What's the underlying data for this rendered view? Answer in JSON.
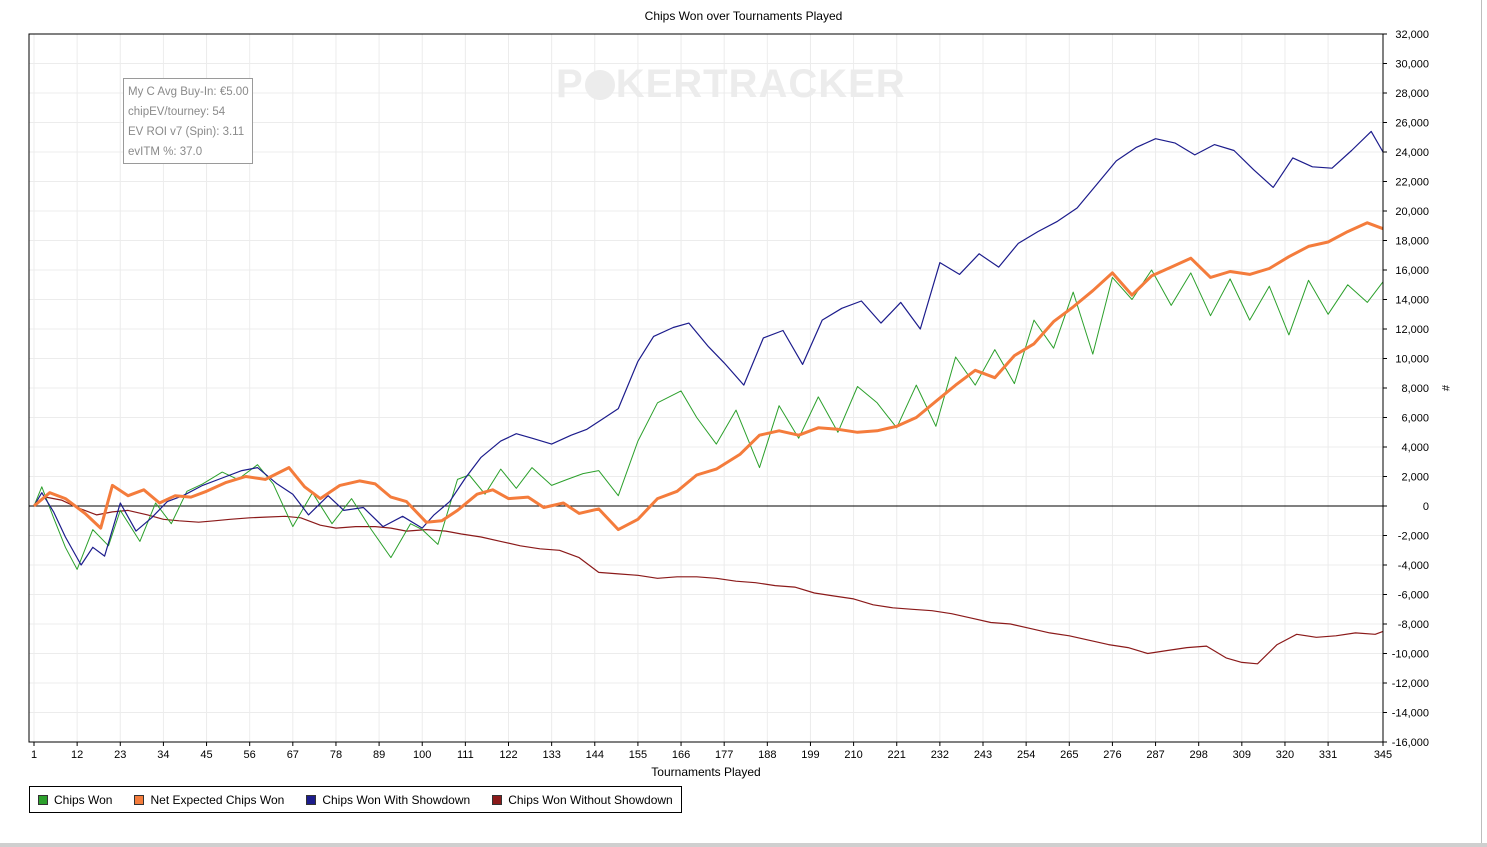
{
  "chart_data": {
    "type": "line",
    "title": "Chips Won over Tournaments Played",
    "xlabel": "Tournaments Played",
    "ylabel": "#",
    "x_ticks": [
      1,
      12,
      23,
      34,
      45,
      56,
      67,
      78,
      89,
      100,
      111,
      122,
      133,
      144,
      155,
      166,
      177,
      188,
      199,
      210,
      221,
      232,
      243,
      254,
      265,
      276,
      287,
      298,
      309,
      320,
      331,
      345
    ],
    "xlim": [
      1,
      345
    ],
    "ylim": [
      -16000,
      32000
    ],
    "y_ticks": [
      -16000,
      -14000,
      -12000,
      -10000,
      -8000,
      -6000,
      -4000,
      -2000,
      0,
      2000,
      4000,
      6000,
      8000,
      10000,
      12000,
      14000,
      16000,
      18000,
      20000,
      22000,
      24000,
      26000,
      28000,
      30000,
      32000
    ],
    "y_tick_labels": [
      "-16,000",
      "-14,000",
      "-12,000",
      "-10,000",
      "-8,000",
      "-6,000",
      "-4,000",
      "-2,000",
      "0",
      "2,000",
      "4,000",
      "6,000",
      "8,000",
      "10,000",
      "12,000",
      "14,000",
      "16,000",
      "18,000",
      "20,000",
      "22,000",
      "24,000",
      "26,000",
      "28,000",
      "30,000",
      "32,000"
    ],
    "grid": true,
    "legend_position": "bottom-left",
    "y_axis_side": "right",
    "series": [
      {
        "name": "Chips Won",
        "color": "#2ca02c",
        "x": [
          1,
          3,
          6,
          9,
          12,
          16,
          20,
          23,
          28,
          32,
          36,
          40,
          44,
          49,
          53,
          58,
          62,
          67,
          72,
          77,
          82,
          87,
          92,
          97,
          100,
          104,
          109,
          112,
          116,
          120,
          124,
          128,
          133,
          137,
          141,
          145,
          150,
          155,
          160,
          166,
          170,
          175,
          180,
          186,
          191,
          196,
          201,
          206,
          211,
          216,
          221,
          226,
          231,
          236,
          241,
          246,
          251,
          256,
          261,
          266,
          271,
          276,
          281,
          286,
          291,
          296,
          301,
          306,
          311,
          316,
          321,
          326,
          331,
          336,
          341,
          345
        ],
        "values": [
          0,
          1300,
          -800,
          -2800,
          -4300,
          -1600,
          -2700,
          -300,
          -2400,
          200,
          -1200,
          1000,
          1500,
          2300,
          1800,
          2800,
          1500,
          -1400,
          900,
          -1200,
          500,
          -1600,
          -3500,
          -1200,
          -1600,
          -2600,
          1800,
          2100,
          800,
          2500,
          1200,
          2600,
          1400,
          1800,
          2200,
          2400,
          700,
          4400,
          7000,
          7800,
          6000,
          4200,
          6500,
          2600,
          6800,
          4600,
          7400,
          5000,
          8100,
          7000,
          5300,
          8200,
          5400,
          10100,
          8200,
          10600,
          8300,
          12600,
          10700,
          14500,
          10300,
          15500,
          14000,
          16000,
          13600,
          15800,
          12900,
          15400,
          12600,
          14900,
          11600,
          15300,
          13000,
          15000,
          13800,
          15200
        ]
      },
      {
        "name": "Net Expected Chips Won",
        "color": "#f47c3c",
        "x": [
          1,
          5,
          9,
          14,
          18,
          21,
          25,
          29,
          33,
          37,
          41,
          45,
          50,
          55,
          60,
          66,
          70,
          74,
          79,
          84,
          88,
          92,
          96,
          101,
          105,
          109,
          114,
          118,
          122,
          127,
          131,
          136,
          140,
          145,
          150,
          155,
          160,
          165,
          170,
          175,
          181,
          186,
          191,
          196,
          201,
          206,
          211,
          216,
          221,
          226,
          231,
          236,
          241,
          246,
          251,
          256,
          261,
          266,
          271,
          276,
          281,
          286,
          291,
          296,
          301,
          306,
          311,
          316,
          321,
          326,
          331,
          336,
          341,
          345
        ],
        "values": [
          0,
          900,
          500,
          -500,
          -1500,
          1400,
          700,
          1100,
          200,
          700,
          600,
          1000,
          1600,
          2000,
          1800,
          2600,
          1300,
          500,
          1400,
          1700,
          1500,
          600,
          300,
          -1100,
          -1000,
          -300,
          800,
          1100,
          500,
          600,
          -100,
          200,
          -500,
          -200,
          -1600,
          -900,
          500,
          1000,
          2100,
          2500,
          3500,
          4800,
          5100,
          4800,
          5300,
          5200,
          5000,
          5100,
          5400,
          6000,
          7100,
          8200,
          9200,
          8700,
          10200,
          11000,
          12500,
          13500,
          14600,
          15800,
          14300,
          15600,
          16200,
          16800,
          15500,
          15900,
          15700,
          16100,
          16900,
          17600,
          17900,
          18600,
          19200,
          18800
        ]
      },
      {
        "name": "Chips Won With Showdown",
        "color": "#1c1c8c",
        "x": [
          1,
          3,
          6,
          9,
          13,
          16,
          19,
          23,
          27,
          31,
          35,
          39,
          44,
          49,
          54,
          58,
          63,
          67,
          71,
          76,
          80,
          85,
          90,
          95,
          100,
          103,
          107,
          111,
          115,
          120,
          124,
          128,
          133,
          138,
          142,
          146,
          150,
          155,
          159,
          164,
          168,
          173,
          177,
          182,
          187,
          192,
          197,
          202,
          207,
          212,
          217,
          222,
          227,
          232,
          237,
          242,
          247,
          252,
          257,
          262,
          267,
          272,
          277,
          282,
          287,
          292,
          297,
          302,
          307,
          312,
          317,
          322,
          327,
          332,
          337,
          342,
          345
        ],
        "values": [
          0,
          900,
          -400,
          -2100,
          -4000,
          -2800,
          -3400,
          200,
          -1700,
          -800,
          300,
          700,
          1400,
          1900,
          2400,
          2600,
          1500,
          800,
          -600,
          700,
          -300,
          -100,
          -1400,
          -700,
          -1500,
          -600,
          300,
          1900,
          3300,
          4400,
          4900,
          4600,
          4200,
          4800,
          5200,
          5900,
          6600,
          9800,
          11500,
          12100,
          12400,
          10800,
          9700,
          8200,
          11400,
          11900,
          9600,
          12600,
          13400,
          13900,
          12400,
          13800,
          12000,
          16500,
          15700,
          17100,
          16200,
          17800,
          18600,
          19300,
          20200,
          21800,
          23400,
          24300,
          24900,
          24600,
          23800,
          24500,
          24100,
          22800,
          21600,
          23600,
          23000,
          22900,
          24100,
          25400,
          24000
        ]
      },
      {
        "name": "Chips Won Without Showdown",
        "color": "#8b1a1a",
        "x": [
          1,
          4,
          8,
          12,
          17,
          21,
          25,
          30,
          34,
          38,
          43,
          47,
          51,
          56,
          60,
          65,
          69,
          74,
          78,
          83,
          88,
          92,
          96,
          101,
          106,
          110,
          115,
          120,
          125,
          130,
          135,
          140,
          145,
          150,
          155,
          160,
          165,
          170,
          175,
          180,
          185,
          190,
          195,
          200,
          205,
          210,
          215,
          220,
          225,
          230,
          235,
          240,
          245,
          250,
          255,
          260,
          265,
          270,
          275,
          280,
          285,
          290,
          295,
          300,
          305,
          309,
          313,
          318,
          323,
          328,
          333,
          338,
          343,
          345
        ],
        "values": [
          0,
          600,
          400,
          -100,
          -600,
          -400,
          -300,
          -600,
          -900,
          -1000,
          -1100,
          -1000,
          -900,
          -800,
          -750,
          -700,
          -800,
          -1300,
          -1500,
          -1400,
          -1400,
          -1500,
          -1700,
          -1600,
          -1700,
          -1900,
          -2100,
          -2400,
          -2700,
          -2900,
          -3000,
          -3500,
          -4500,
          -4600,
          -4700,
          -4900,
          -4800,
          -4800,
          -4900,
          -5100,
          -5200,
          -5400,
          -5500,
          -5900,
          -6100,
          -6300,
          -6700,
          -6900,
          -7000,
          -7100,
          -7300,
          -7600,
          -7900,
          -8000,
          -8300,
          -8600,
          -8800,
          -9100,
          -9400,
          -9600,
          -10000,
          -9800,
          -9600,
          -9500,
          -10300,
          -10600,
          -10700,
          -9400,
          -8700,
          -8900,
          -8800,
          -8600,
          -8700,
          -8500
        ]
      }
    ]
  },
  "stats_box": {
    "line1": "My C Avg Buy-In: €5.00",
    "line2": "chipEV/tourney: 54",
    "line3": "EV ROI v7 (Spin): 3.11",
    "line4": "evITM %: 37.0"
  },
  "watermark": {
    "part1": "P",
    "part2": "KER",
    "part3": "TRACKER"
  }
}
